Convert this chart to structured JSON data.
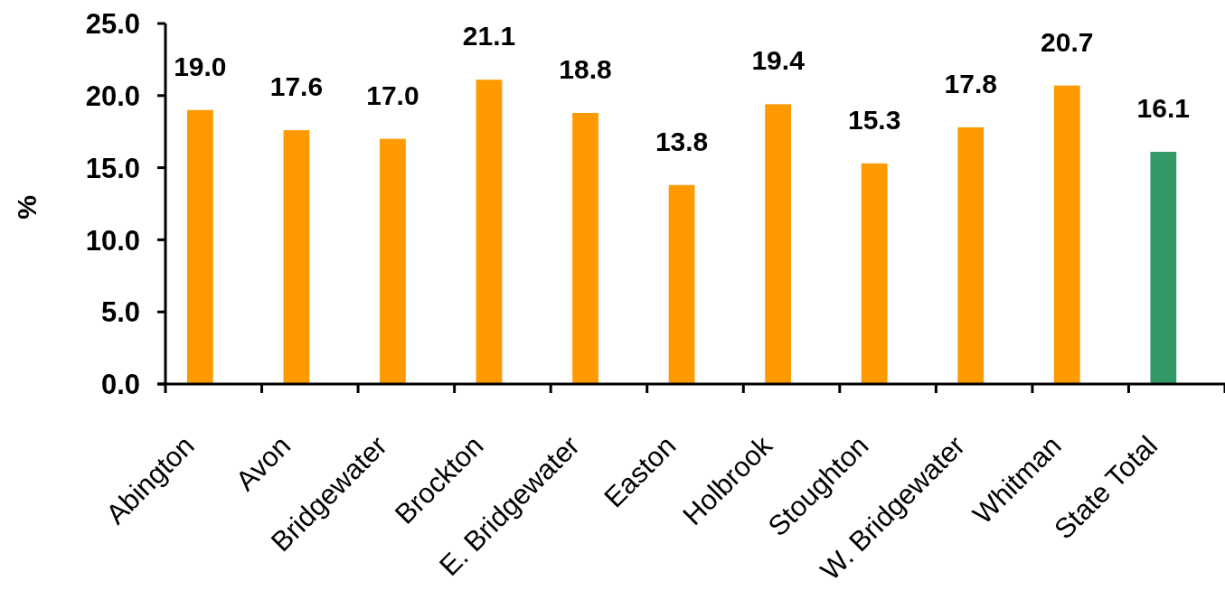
{
  "chart_data": {
    "type": "bar",
    "ylabel": "%",
    "categories": [
      "Abington",
      "Avon",
      "Bridgewater",
      "Brockton",
      "E. Bridgewater",
      "Easton",
      "Holbrook",
      "Stoughton",
      "W. Bridgewater",
      "Whitman",
      "State Total"
    ],
    "values": [
      19.0,
      17.6,
      17.0,
      21.1,
      18.8,
      13.8,
      19.4,
      15.3,
      17.8,
      20.7,
      16.1
    ],
    "colors": [
      "#ff9900",
      "#ff9900",
      "#ff9900",
      "#ff9900",
      "#ff9900",
      "#ff9900",
      "#ff9900",
      "#ff9900",
      "#ff9900",
      "#ff9900",
      "#339966"
    ],
    "value_labels": [
      "19.0",
      "17.6",
      "17.0",
      "21.1",
      "18.8",
      "13.8",
      "19.4",
      "15.3",
      "17.8",
      "20.7",
      "16.1"
    ],
    "ylim": [
      0,
      25
    ],
    "yticks": [
      {
        "value": 0,
        "label": "0.0"
      },
      {
        "value": 5,
        "label": "5.0"
      },
      {
        "value": 10,
        "label": "10.0"
      },
      {
        "value": 15,
        "label": "15.0"
      },
      {
        "value": 20,
        "label": "20.0"
      },
      {
        "value": 25,
        "label": "25.0"
      }
    ]
  }
}
